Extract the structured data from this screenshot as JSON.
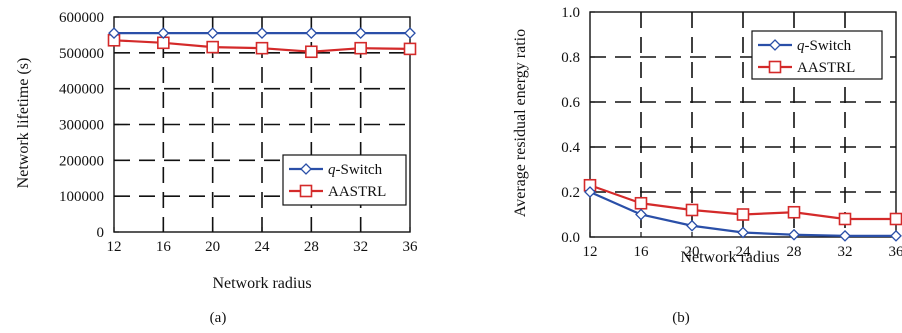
{
  "chart_data": [
    {
      "type": "line",
      "caption": "(a)",
      "xlabel": "Network radius",
      "ylabel": "Network lifetime (s)",
      "x": [
        12,
        16,
        20,
        24,
        28,
        32,
        36
      ],
      "xlim": [
        12,
        36
      ],
      "ylim": [
        0,
        600000
      ],
      "xticks": [
        "12",
        "16",
        "20",
        "24",
        "28",
        "32",
        "36"
      ],
      "yticks": [
        "0",
        "100000",
        "200000",
        "300000",
        "400000",
        "500000",
        "600000"
      ],
      "grid": true,
      "legend_position": "lower-right",
      "series": [
        {
          "name": "q-Switch",
          "name_prefix": "q",
          "name_suffix": "-Switch",
          "color": "#2a4fa8",
          "marker": "diamond",
          "values": [
            555000,
            555000,
            555000,
            555000,
            555000,
            555000,
            555000
          ]
        },
        {
          "name": "AASTRL",
          "color": "#d42a2a",
          "marker": "square",
          "values": [
            535000,
            528000,
            516000,
            513000,
            503000,
            513000,
            511000
          ]
        }
      ]
    },
    {
      "type": "line",
      "caption": "(b)",
      "xlabel": "Network radius",
      "ylabel": "Average residual energy ratio",
      "x": [
        12,
        16,
        20,
        24,
        28,
        32,
        36
      ],
      "xlim": [
        12,
        36
      ],
      "ylim": [
        0,
        1.0
      ],
      "xticks": [
        "12",
        "16",
        "20",
        "24",
        "28",
        "32",
        "36"
      ],
      "yticks": [
        "0.0",
        "0.2",
        "0.4",
        "0.6",
        "0.8",
        "1.0"
      ],
      "grid": true,
      "legend_position": "top-right",
      "series": [
        {
          "name": "q-Switch",
          "name_prefix": "q",
          "name_suffix": "-Switch",
          "color": "#2a4fa8",
          "marker": "diamond",
          "values": [
            0.2,
            0.1,
            0.05,
            0.02,
            0.01,
            0.005,
            0.005
          ]
        },
        {
          "name": "AASTRL",
          "color": "#d42a2a",
          "marker": "square",
          "values": [
            0.23,
            0.15,
            0.12,
            0.1,
            0.11,
            0.08,
            0.08
          ]
        }
      ]
    }
  ]
}
